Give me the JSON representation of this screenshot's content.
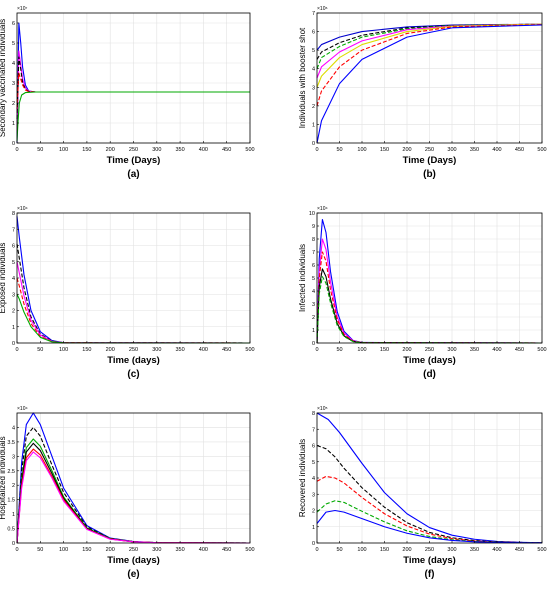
{
  "chart_data": [
    {
      "type": "line",
      "caption": "(a)",
      "ylabel": "Secondary vaccinated individuals",
      "xlabel": "Time (Days)",
      "xlim": [
        0,
        500
      ],
      "ylim": [
        0,
        6.5
      ],
      "y_multiplier": "×10⁷",
      "xticks": [
        0,
        50,
        100,
        150,
        200,
        250,
        300,
        350,
        400,
        450,
        500
      ],
      "yticks": [
        0,
        1,
        2,
        3,
        4,
        5,
        6
      ],
      "grid": true,
      "series": [
        {
          "color": "#0000ff",
          "dash": "",
          "x": [
            0,
            4,
            8,
            12,
            18,
            25,
            40,
            500
          ],
          "y": [
            0,
            6.0,
            5.0,
            3.8,
            2.9,
            2.6,
            2.55,
            2.55
          ]
        },
        {
          "color": "#ff00ff",
          "dash": "",
          "x": [
            0,
            4,
            8,
            12,
            18,
            25,
            40,
            500
          ],
          "y": [
            0.6,
            4.6,
            3.9,
            3.2,
            2.75,
            2.6,
            2.55,
            2.55
          ]
        },
        {
          "color": "#000000",
          "dash": "4,2",
          "x": [
            0,
            4,
            8,
            12,
            18,
            25,
            40,
            500
          ],
          "y": [
            1.2,
            4.3,
            3.7,
            3.0,
            2.7,
            2.58,
            2.55,
            2.55
          ]
        },
        {
          "color": "#ff0000",
          "dash": "4,2",
          "x": [
            0,
            4,
            8,
            12,
            18,
            25,
            40,
            500
          ],
          "y": [
            1.7,
            3.5,
            3.2,
            2.9,
            2.65,
            2.57,
            2.55,
            2.55
          ]
        },
        {
          "color": "#00aa00",
          "dash": "",
          "x": [
            0,
            2,
            5,
            10,
            18,
            40,
            500
          ],
          "y": [
            0.1,
            1.0,
            2.0,
            2.4,
            2.52,
            2.55,
            2.55
          ]
        }
      ]
    },
    {
      "type": "line",
      "caption": "(b)",
      "ylabel": "Individuals with booster shot",
      "xlabel": "Time (Days)",
      "xlim": [
        0,
        500
      ],
      "ylim": [
        0,
        7
      ],
      "y_multiplier": "×10⁶",
      "xticks": [
        0,
        50,
        100,
        150,
        200,
        250,
        300,
        350,
        400,
        450,
        500
      ],
      "yticks": [
        0,
        1,
        2,
        3,
        4,
        5,
        6,
        7
      ],
      "grid": true,
      "series": [
        {
          "color": "#0000cc",
          "dash": "",
          "x": [
            0,
            10,
            50,
            100,
            200,
            300,
            500
          ],
          "y": [
            5.0,
            5.3,
            5.7,
            6.0,
            6.25,
            6.35,
            6.4
          ]
        },
        {
          "color": "#000000",
          "dash": "4,2",
          "x": [
            0,
            10,
            50,
            100,
            200,
            300,
            500
          ],
          "y": [
            4.5,
            4.9,
            5.4,
            5.8,
            6.2,
            6.33,
            6.4
          ]
        },
        {
          "color": "#00aa00",
          "dash": "4,2",
          "x": [
            0,
            10,
            50,
            100,
            200,
            300,
            500
          ],
          "y": [
            4.0,
            4.6,
            5.2,
            5.7,
            6.15,
            6.32,
            6.4
          ]
        },
        {
          "color": "#ff00ff",
          "dash": "",
          "x": [
            0,
            10,
            50,
            100,
            200,
            300,
            500
          ],
          "y": [
            3.5,
            4.1,
            4.9,
            5.5,
            6.1,
            6.3,
            6.4
          ]
        },
        {
          "color": "#dddd00",
          "dash": "",
          "x": [
            0,
            10,
            50,
            100,
            200,
            300,
            500
          ],
          "y": [
            3.0,
            3.6,
            4.6,
            5.3,
            6.0,
            6.28,
            6.4
          ]
        },
        {
          "color": "#ff0000",
          "dash": "4,2",
          "x": [
            0,
            10,
            50,
            100,
            200,
            300,
            500
          ],
          "y": [
            2.0,
            2.8,
            4.1,
            5.0,
            5.9,
            6.25,
            6.38
          ]
        },
        {
          "color": "#0000ff",
          "dash": "",
          "x": [
            0,
            10,
            50,
            100,
            200,
            300,
            500
          ],
          "y": [
            0.0,
            1.2,
            3.2,
            4.5,
            5.7,
            6.2,
            6.36
          ]
        }
      ]
    },
    {
      "type": "line",
      "caption": "(c)",
      "ylabel": "Exposed individuals",
      "xlabel": "Time (days)",
      "xlim": [
        0,
        500
      ],
      "ylim": [
        0,
        8
      ],
      "y_multiplier": "×10⁴",
      "xticks": [
        0,
        50,
        100,
        150,
        200,
        250,
        300,
        350,
        400,
        450,
        500
      ],
      "yticks": [
        0,
        1,
        2,
        3,
        4,
        5,
        6,
        7,
        8
      ],
      "grid": true,
      "series": [
        {
          "color": "#0000ff",
          "dash": "",
          "x": [
            0,
            5,
            15,
            30,
            50,
            75,
            100,
            500
          ],
          "y": [
            7.8,
            6.5,
            4.2,
            2.0,
            0.7,
            0.15,
            0.02,
            0
          ]
        },
        {
          "color": "#000000",
          "dash": "4,2",
          "x": [
            0,
            5,
            15,
            30,
            50,
            75,
            100,
            500
          ],
          "y": [
            6.1,
            5.2,
            3.4,
            1.6,
            0.55,
            0.12,
            0.02,
            0
          ]
        },
        {
          "color": "#ff00ff",
          "dash": "",
          "x": [
            0,
            5,
            15,
            30,
            50,
            75,
            100,
            500
          ],
          "y": [
            5.0,
            4.3,
            2.9,
            1.4,
            0.5,
            0.1,
            0.02,
            0
          ]
        },
        {
          "color": "#ff0000",
          "dash": "4,2",
          "x": [
            0,
            5,
            15,
            30,
            50,
            75,
            100,
            500
          ],
          "y": [
            4.0,
            3.5,
            2.4,
            1.2,
            0.4,
            0.08,
            0.01,
            0
          ]
        },
        {
          "color": "#00aa00",
          "dash": "",
          "x": [
            0,
            5,
            15,
            30,
            50,
            75,
            100,
            500
          ],
          "y": [
            3.0,
            2.7,
            1.9,
            1.0,
            0.35,
            0.07,
            0.01,
            0
          ]
        }
      ]
    },
    {
      "type": "line",
      "caption": "(d)",
      "ylabel": "Infected individuals",
      "xlabel": "Time (days)",
      "xlim": [
        0,
        500
      ],
      "ylim": [
        0,
        10
      ],
      "y_multiplier": "×10⁴",
      "xticks": [
        0,
        50,
        100,
        150,
        200,
        250,
        300,
        350,
        400,
        450,
        500
      ],
      "yticks": [
        0,
        1,
        2,
        3,
        4,
        5,
        6,
        7,
        8,
        9,
        10
      ],
      "grid": true,
      "series": [
        {
          "color": "#0000ff",
          "dash": "",
          "x": [
            0,
            5,
            12,
            20,
            30,
            45,
            60,
            80,
            100,
            500
          ],
          "y": [
            0,
            6.5,
            9.5,
            8.5,
            5.5,
            2.4,
            0.9,
            0.2,
            0.04,
            0
          ]
        },
        {
          "color": "#ff00ff",
          "dash": "",
          "x": [
            0,
            5,
            12,
            20,
            30,
            45,
            60,
            80,
            100,
            500
          ],
          "y": [
            0,
            5.5,
            8.0,
            7.2,
            4.7,
            2.0,
            0.75,
            0.18,
            0.03,
            0
          ]
        },
        {
          "color": "#ff0000",
          "dash": "4,2",
          "x": [
            0,
            5,
            12,
            20,
            30,
            45,
            60,
            80,
            100,
            500
          ],
          "y": [
            0,
            5.0,
            7.0,
            6.3,
            4.1,
            1.8,
            0.65,
            0.15,
            0.03,
            0
          ]
        },
        {
          "color": "#000000",
          "dash": "",
          "x": [
            0,
            5,
            12,
            20,
            30,
            45,
            60,
            80,
            100,
            500
          ],
          "y": [
            0,
            4.3,
            5.7,
            5.1,
            3.4,
            1.5,
            0.55,
            0.12,
            0.02,
            0
          ]
        },
        {
          "color": "#00aa00",
          "dash": "4,2",
          "x": [
            0,
            5,
            12,
            20,
            30,
            45,
            60,
            80,
            100,
            500
          ],
          "y": [
            0,
            3.8,
            5.1,
            4.6,
            3.1,
            1.35,
            0.5,
            0.11,
            0.02,
            0
          ]
        }
      ]
    },
    {
      "type": "line",
      "caption": "(e)",
      "ylabel": "Hospitalized individuals",
      "xlabel": "Time (days)",
      "xlim": [
        0,
        500
      ],
      "ylim": [
        0,
        4.5
      ],
      "y_multiplier": "×10⁴",
      "xticks": [
        0,
        50,
        100,
        150,
        200,
        250,
        300,
        350,
        400,
        450,
        500
      ],
      "yticks": [
        0,
        0.5,
        1,
        1.5,
        2,
        2.5,
        3,
        3.5,
        4
      ],
      "grid": true,
      "series": [
        {
          "color": "#0000ff",
          "dash": "",
          "x": [
            0,
            10,
            20,
            35,
            50,
            75,
            100,
            150,
            200,
            250,
            300,
            500
          ],
          "y": [
            0,
            2.8,
            4.1,
            4.5,
            4.1,
            3.0,
            1.9,
            0.6,
            0.17,
            0.05,
            0.01,
            0
          ]
        },
        {
          "color": "#000000",
          "dash": "4,2",
          "x": [
            0,
            10,
            20,
            35,
            50,
            75,
            100,
            150,
            200,
            250,
            300,
            500
          ],
          "y": [
            0,
            2.5,
            3.7,
            4.0,
            3.7,
            2.7,
            1.75,
            0.56,
            0.16,
            0.05,
            0.01,
            0
          ]
        },
        {
          "color": "#00aa00",
          "dash": "",
          "x": [
            0,
            10,
            20,
            35,
            50,
            75,
            100,
            150,
            200,
            250,
            300,
            500
          ],
          "y": [
            0,
            2.2,
            3.3,
            3.6,
            3.35,
            2.5,
            1.6,
            0.52,
            0.15,
            0.04,
            0.01,
            0
          ]
        },
        {
          "color": "#000000",
          "dash": "",
          "x": [
            0,
            10,
            20,
            35,
            50,
            75,
            100,
            150,
            200,
            250,
            300,
            500
          ],
          "y": [
            0,
            2.1,
            3.15,
            3.45,
            3.2,
            2.4,
            1.55,
            0.5,
            0.14,
            0.04,
            0.01,
            0
          ]
        },
        {
          "color": "#ff0000",
          "dash": "",
          "x": [
            0,
            10,
            20,
            35,
            50,
            75,
            100,
            150,
            200,
            250,
            300,
            500
          ],
          "y": [
            0,
            2.0,
            2.95,
            3.25,
            3.05,
            2.3,
            1.5,
            0.48,
            0.14,
            0.04,
            0.01,
            0
          ]
        },
        {
          "color": "#ff00ff",
          "dash": "",
          "x": [
            0,
            10,
            20,
            35,
            50,
            75,
            100,
            150,
            200,
            250,
            300,
            500
          ],
          "y": [
            0,
            1.9,
            2.85,
            3.15,
            2.95,
            2.25,
            1.45,
            0.47,
            0.13,
            0.04,
            0.01,
            0
          ]
        }
      ]
    },
    {
      "type": "line",
      "caption": "(f)",
      "ylabel": "Recovered individuals",
      "xlabel": "Time (days)",
      "xlim": [
        0,
        500
      ],
      "ylim": [
        0,
        8
      ],
      "y_multiplier": "×10⁵",
      "xticks": [
        0,
        50,
        100,
        150,
        200,
        250,
        300,
        350,
        400,
        450,
        500
      ],
      "yticks": [
        0,
        1,
        2,
        3,
        4,
        5,
        6,
        7,
        8
      ],
      "grid": true,
      "series": [
        {
          "color": "#0000ff",
          "dash": "",
          "x": [
            0,
            25,
            50,
            100,
            150,
            200,
            250,
            300,
            350,
            400,
            450,
            500
          ],
          "y": [
            8.0,
            7.6,
            6.8,
            4.9,
            3.1,
            1.8,
            0.95,
            0.48,
            0.23,
            0.1,
            0.04,
            0.01
          ]
        },
        {
          "color": "#000000",
          "dash": "4,2",
          "x": [
            0,
            20,
            40,
            60,
            100,
            150,
            200,
            250,
            300,
            350,
            400,
            500
          ],
          "y": [
            6.0,
            5.8,
            5.3,
            4.6,
            3.4,
            2.2,
            1.25,
            0.65,
            0.32,
            0.15,
            0.06,
            0.01
          ]
        },
        {
          "color": "#ff0000",
          "dash": "4,2",
          "x": [
            0,
            20,
            40,
            60,
            100,
            150,
            200,
            250,
            300,
            350,
            400,
            500
          ],
          "y": [
            3.8,
            4.1,
            4.0,
            3.7,
            2.8,
            1.8,
            1.05,
            0.55,
            0.27,
            0.12,
            0.05,
            0.01
          ]
        },
        {
          "color": "#00aa00",
          "dash": "4,2",
          "x": [
            0,
            20,
            40,
            60,
            100,
            150,
            200,
            250,
            300,
            350,
            400,
            500
          ],
          "y": [
            1.9,
            2.4,
            2.6,
            2.5,
            1.95,
            1.3,
            0.75,
            0.4,
            0.2,
            0.09,
            0.04,
            0.01
          ]
        },
        {
          "color": "#0000ff",
          "dash": "",
          "x": [
            0,
            20,
            40,
            60,
            100,
            150,
            200,
            250,
            300,
            350,
            400,
            500
          ],
          "y": [
            1.2,
            1.9,
            2.0,
            1.9,
            1.5,
            1.0,
            0.6,
            0.32,
            0.16,
            0.07,
            0.03,
            0.01
          ]
        }
      ]
    }
  ]
}
